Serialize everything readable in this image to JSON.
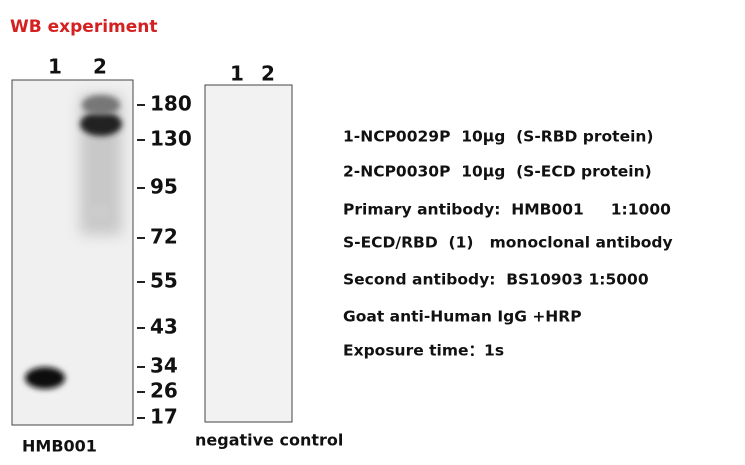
{
  "header": {
    "title": "WB experiment"
  },
  "blots": [
    {
      "lanes": [
        "1",
        "2"
      ],
      "caption": "HMB001"
    },
    {
      "lanes": [
        "1",
        "2"
      ],
      "caption": "negative control"
    }
  ],
  "markers": [
    "180",
    "130",
    "95",
    "72",
    "55",
    "43",
    "34",
    "26",
    "17"
  ],
  "notes": [
    "1-NCP0029P  10μg  (S-RBD protein)",
    "2-NCP0030P  10μg  (S-ECD protein)",
    "Primary antibody:  HMB001     1:1000",
    "S-ECD/RBD  (1)   monoclonal antibody",
    "Second antibody:  BS10903 1:5000",
    "Goat anti-Human IgG +HRP",
    "Exposure time：1s"
  ]
}
